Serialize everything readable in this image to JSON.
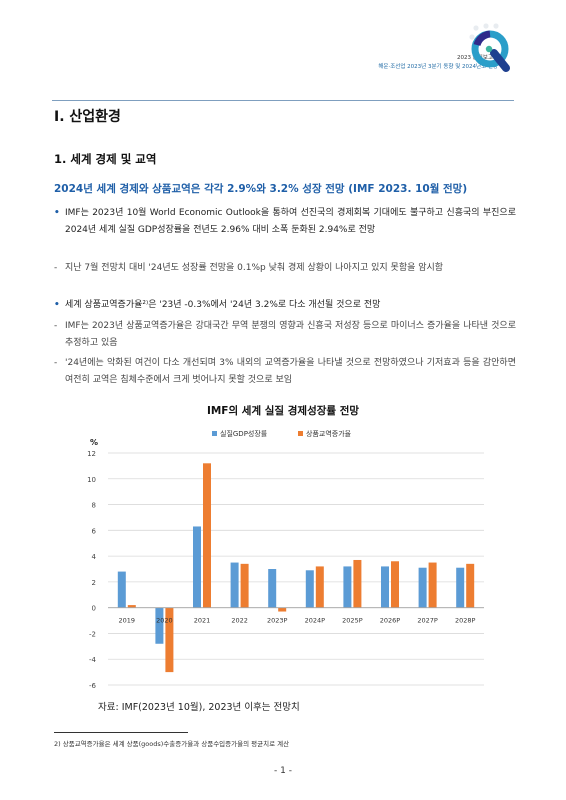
{
  "header": {
    "report_title": "2023 분기보고서",
    "report_subtitle": "해운·조선업 2023년 3분기 동향 및 2024년도 전망"
  },
  "section_title": "Ⅰ. 산업환경",
  "heading1": "1. 세계 경제 및 교역",
  "heading2": "2024년 세계 경제와 상품교역은 각각 2.9%와 3.2% 성장 전망 (IMF 2023. 10월 전망)",
  "paragraphs": [
    {
      "marker": "•",
      "text": "IMF는 2023년 10월 World Economic Outlook을 통하여 선진국의 경제회복 기대에도 불구하고 신흥국의 부진으로 2024년 세계 실질 GDP성장률을 전년도 2.96% 대비 소폭 둔화된 2.94%로 전망"
    },
    {
      "marker": "-",
      "text": "지난 7월 전망치 대비 '24년도 성장률 전망을 0.1%p 낮춰 경제 상황이 나아지고 있지 못함을 암시함"
    },
    {
      "marker": "•",
      "text": "세계 상품교역증가율²⁾은 '23년 -0.3%에서 '24년 3.2%로 다소 개선될 것으로 전망"
    },
    {
      "marker": "-",
      "text": "IMF는 2023년 상품교역증가율은 강대국간 무역 분쟁의 영향과 신흥국 저성장 등으로 마이너스 증가율을 나타낸 것으로 추정하고 있음"
    },
    {
      "marker": "-",
      "text": "'24년에는 악화된 여건이 다소 개선되며 3% 내외의 교역증가율을 나타낼 것으로 전망하였으나 기저효과 등을 감안하면 여전히 교역은 침체수준에서 크게 벗어나지 못할 것으로 보임"
    }
  ],
  "chart_title": "IMF의 세계 실질 경제성장률 전망",
  "chart_data": {
    "type": "bar",
    "title": "IMF의 세계 실질 경제성장률 전망",
    "ylabel": "%",
    "xlabel": "",
    "ylim": [
      -6,
      12
    ],
    "yticks": [
      -6,
      -4,
      -2,
      0,
      2,
      4,
      6,
      8,
      10,
      12
    ],
    "categories": [
      "2019",
      "2020",
      "2021",
      "2022",
      "2023P",
      "2024P",
      "2025P",
      "2026P",
      "2027P",
      "2028P"
    ],
    "series": [
      {
        "name": "실질GDP성장률",
        "color": "#5b9bd5",
        "values": [
          2.8,
          -2.8,
          6.3,
          3.5,
          3.0,
          2.9,
          3.2,
          3.2,
          3.1,
          3.1
        ]
      },
      {
        "name": "상품교역증가율",
        "color": "#ed7d31",
        "values": [
          0.2,
          -5.0,
          11.2,
          3.4,
          -0.3,
          3.2,
          3.7,
          3.6,
          3.5,
          3.4
        ]
      }
    ],
    "legend_position": "top",
    "grid": true
  },
  "source": "자료: IMF(2023년 10월), 2023년 이후는 전망치",
  "footnote": "2) 상품교역증가율은 세계 상품(goods)수출증가율과 상품수입증가율의 평균치로 계산",
  "page_number": "- 1 -"
}
